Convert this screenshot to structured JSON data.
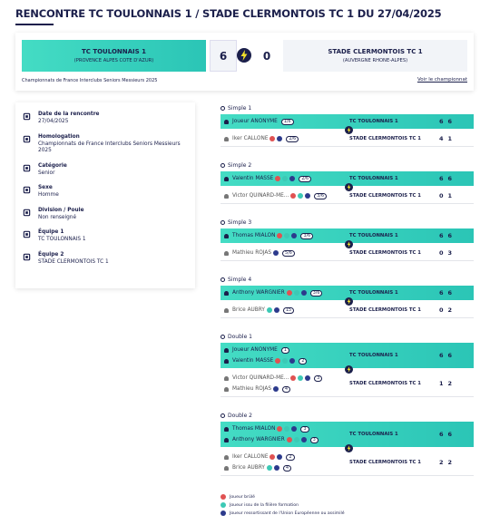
{
  "header": {
    "title": "RENCONTRE TC TOULONNAIS 1 / STADE CLERMONTOIS TC 1 DU 27/04/2025"
  },
  "score": {
    "home": {
      "name": "TC TOULONNAIS 1",
      "region": "(PROVENCE ALPES COTE D'AZUR)"
    },
    "home_score": 6,
    "away_score": 0,
    "away": {
      "name": "STADE CLERMONTOIS TC 1",
      "region": "(AUVERGNE RHONE-ALPES)"
    }
  },
  "championship": {
    "name": "Championnats de France Interclubs Seniors Messieurs 2025",
    "link": "Voir le championnat"
  },
  "info": [
    {
      "label": "Date de la rencontre",
      "value": "27/04/2025"
    },
    {
      "label": "Homologation",
      "value": "Championnats de France Interclubs Seniors Messieurs 2025"
    },
    {
      "label": "Catégorie",
      "value": "Senior"
    },
    {
      "label": "Sexe",
      "value": "Homme"
    },
    {
      "label": "Division / Poule",
      "value": "Non renseigné"
    },
    {
      "label": "Équipe 1",
      "value": "TC TOULONNAIS 1"
    },
    {
      "label": "Équipe 2",
      "value": "STADE CLERMONTOIS TC 1"
    }
  ],
  "matches": [
    {
      "title": "Simple 1",
      "home": {
        "team": "TC TOULONNAIS 1",
        "scores": [
          6,
          6
        ],
        "players": [
          {
            "name": "Joueur ANONYME",
            "rank": "1/6",
            "icons": []
          }
        ]
      },
      "away": {
        "team": "STADE CLERMONTOIS TC 1",
        "scores": [
          4,
          1
        ],
        "players": [
          {
            "name": "Iker CALLONE",
            "rank": "2/6",
            "icons": [
              "#e05252",
              "#2c3a8c"
            ]
          }
        ]
      }
    },
    {
      "title": "Simple 2",
      "home": {
        "team": "TC TOULONNAIS 1",
        "scores": [
          6,
          6
        ],
        "players": [
          {
            "name": "Valentin MASSE",
            "rank": "2/6",
            "icons": [
              "#e05252",
              "#3cc9b5",
              "#2c3a8c"
            ]
          }
        ]
      },
      "away": {
        "team": "STADE CLERMONTOIS TC 1",
        "scores": [
          0,
          1
        ],
        "players": [
          {
            "name": "Victor QUINARD-ME...",
            "rank": "3/6",
            "icons": [
              "#e05252",
              "#3cc9b5",
              "#2c3a8c"
            ]
          }
        ]
      }
    },
    {
      "title": "Simple 3",
      "home": {
        "team": "TC TOULONNAIS 1",
        "scores": [
          6,
          6
        ],
        "players": [
          {
            "name": "Thomas MIALON",
            "rank": "3/6",
            "icons": [
              "#e05252",
              "#3cc9b5",
              "#2c3a8c"
            ]
          }
        ]
      },
      "away": {
        "team": "STADE CLERMONTOIS TC 1",
        "scores": [
          0,
          3
        ],
        "players": [
          {
            "name": "Mathieu ROJAS",
            "rank": "5/6",
            "icons": [
              "#2c3a8c"
            ]
          }
        ]
      }
    },
    {
      "title": "Simple 4",
      "home": {
        "team": "TC TOULONNAIS 1",
        "scores": [
          6,
          6
        ],
        "players": [
          {
            "name": "Anthony WARGNIER",
            "rank": "3/6",
            "icons": [
              "#e05252",
              "#3cc9b5",
              "#2c3a8c"
            ]
          }
        ]
      },
      "away": {
        "team": "STADE CLERMONTOIS TC 1",
        "scores": [
          0,
          2
        ],
        "players": [
          {
            "name": "Brice AUBRY",
            "rank": "15",
            "icons": [
              "#3cc9b5",
              "#2c3a8c"
            ]
          }
        ]
      }
    },
    {
      "title": "Double 1",
      "home": {
        "team": "TC TOULONNAIS 1",
        "scores": [
          6,
          6
        ],
        "players": [
          {
            "name": "Joueur ANONYME",
            "rank": "1",
            "icons": []
          },
          {
            "name": "Valentin MASSE",
            "rank": "2",
            "icons": [
              "#e05252",
              "#3cc9b5",
              "#2c3a8c"
            ]
          }
        ]
      },
      "away": {
        "team": "STADE CLERMONTOIS TC 1",
        "scores": [
          1,
          2
        ],
        "players": [
          {
            "name": "Victor QUINARD-ME...",
            "rank": "3",
            "icons": [
              "#e05252",
              "#3cc9b5",
              "#2c3a8c"
            ]
          },
          {
            "name": "Mathieu ROJAS",
            "rank": "4",
            "icons": [
              "#2c3a8c"
            ]
          }
        ]
      }
    },
    {
      "title": "Double 2",
      "home": {
        "team": "TC TOULONNAIS 1",
        "scores": [
          6,
          6
        ],
        "players": [
          {
            "name": "Thomas MIALON",
            "rank": "3",
            "icons": [
              "#e05252",
              "#3cc9b5",
              "#2c3a8c"
            ]
          },
          {
            "name": "Anthony WARGNIER",
            "rank": "3",
            "icons": [
              "#e05252",
              "#3cc9b5",
              "#2c3a8c"
            ]
          }
        ]
      },
      "away": {
        "team": "STADE CLERMONTOIS TC 1",
        "scores": [
          2,
          2
        ],
        "players": [
          {
            "name": "Iker CALLONE",
            "rank": "2",
            "icons": [
              "#e05252",
              "#2c3a8c"
            ]
          },
          {
            "name": "Brice AUBRY",
            "rank": "4",
            "icons": [
              "#3cc9b5",
              "#2c3a8c"
            ]
          }
        ]
      }
    }
  ],
  "legend": [
    {
      "color": "#e05252",
      "label": "Joueur brûlé"
    },
    {
      "color": "#3cc9b5",
      "label": "Joueur issu de la filière formation"
    },
    {
      "color": "#2c3a8c",
      "label": "Joueur ressortissant de l'Union Européenne ou assimilé"
    }
  ]
}
